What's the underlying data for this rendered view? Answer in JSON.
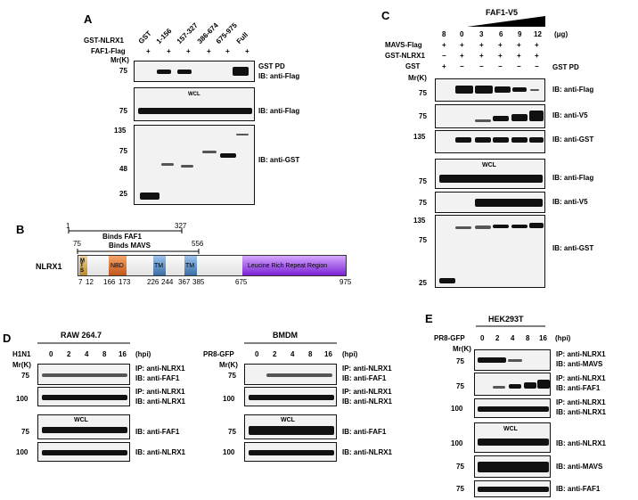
{
  "panels": {
    "A": "A",
    "B": "B",
    "C": "C",
    "D": "D",
    "E": "E"
  },
  "A": {
    "lanes": [
      "GST",
      "1-156",
      "157-327",
      "386-674",
      "675-975",
      "Full"
    ],
    "row_gst": "GST-NLRX1",
    "row_faf": "FAF1-Flag",
    "plus": "+",
    "mr": "Mr(K)",
    "wcl": "WCL",
    "labels": {
      "gstpd": "GST PD",
      "ib_flag": "IB: anti-Flag",
      "ib_flag2": "IB: anti-Flag",
      "ib_gst": "IB: anti-GST"
    },
    "mw": {
      "m1": "75",
      "m2": "75",
      "m3": "135",
      "m4": "75",
      "m5": "48",
      "m6": "25"
    }
  },
  "B": {
    "protein": "NLRX1",
    "binds_faf1": "Binds FAF1",
    "binds_mavs": "Binds MAVS",
    "n1": "1",
    "n327": "327",
    "n75": "75",
    "n556": "556",
    "mts": "MTS",
    "nbd": "NBD",
    "tm": "TM",
    "lrr": "Leucine Rich  Repeat Region",
    "pos": {
      "p7": "7",
      "p12": "12",
      "p166": "166",
      "p173": "173",
      "p226": "226",
      "p244": "244",
      "p367": "367",
      "p385": "385",
      "p675": "675",
      "p975": "975"
    },
    "colors": {
      "mts": "#c9a34a",
      "nbd": "#d2691e",
      "tm": "#4a7fb5",
      "lrr": "#8a2be2"
    }
  },
  "C": {
    "title": "FAF1-V5",
    "unit": "(μg)",
    "amounts": [
      "8",
      "0",
      "3",
      "6",
      "9",
      "12"
    ],
    "row_mavs": "MAVS-Flag",
    "row_gstnl": "GST-NLRX1",
    "row_gst": "GST",
    "plus": "+",
    "minus": "−",
    "mr": "Mr(K)",
    "wcl": "WCL",
    "labels": {
      "gstpd": "GST PD",
      "flag": "IB: anti-Flag",
      "v5": "IB: anti-V5",
      "gst": "IB: anti-GST",
      "flag2": "IB: anti-Flag",
      "v52": "IB: anti-V5",
      "gst2": "IB: anti-GST"
    },
    "mw": {
      "a": "75",
      "b": "75",
      "c": "135",
      "d": "75",
      "e": "75",
      "f": "135",
      "g": "75",
      "h": "25"
    }
  },
  "D": {
    "raw": "RAW 264.7",
    "bmdm": "BMDM",
    "h1n1": "H1N1",
    "pr8": "PR8-GFP",
    "times": [
      "0",
      "2",
      "4",
      "8",
      "16"
    ],
    "hpi": "(hpi)",
    "mr": "Mr(K)",
    "wcl": "WCL",
    "ip1a": "IP: anti-NLRX1",
    "ip1b": "IB: anti-FAF1",
    "ip2a": "IP: anti-NLRX1",
    "ip2b": "IB: anti-NLRX1",
    "faf": "IB: anti-FAF1",
    "nlrx": "IB: anti-NLRX1",
    "ip3a": "IP: anti-NLRX1",
    "ip3b": "IB: anti-FAF1",
    "ip4a": "IP: anti-NLRX1",
    "ip4b": "IB: anti-NLRX1",
    "faf2": "IB: anti-FAF1",
    "nlrx2": "IB: anti-NLRX1",
    "mw": {
      "a": "75",
      "b": "100",
      "c": "75",
      "d": "100",
      "e": "75",
      "f": "100",
      "g": "75",
      "h": "100"
    }
  },
  "E": {
    "cell": "HEK293T",
    "pr8": "PR8-GFP",
    "times": [
      "0",
      "2",
      "4",
      "8",
      "16"
    ],
    "hpi": "(hpi)",
    "mr": "Mr(K)",
    "wcl": "WCL",
    "r1a": "IP: anti-NLRX1",
    "r1b": "IB: anti-MAVS",
    "r2a": "IP: anti-NLRX1",
    "r2b": "IB: anti-FAF1",
    "r3a": "IP: anti-NLRX1",
    "r3b": "IB: anti-NLRX1",
    "w1": "IB: anti-NLRX1",
    "w2": "IB: anti-MAVS",
    "w3": "IB: anti-FAF1",
    "mw": {
      "a": "75",
      "b": "75",
      "c": "100",
      "d": "100",
      "e": "75",
      "f": "75"
    }
  }
}
